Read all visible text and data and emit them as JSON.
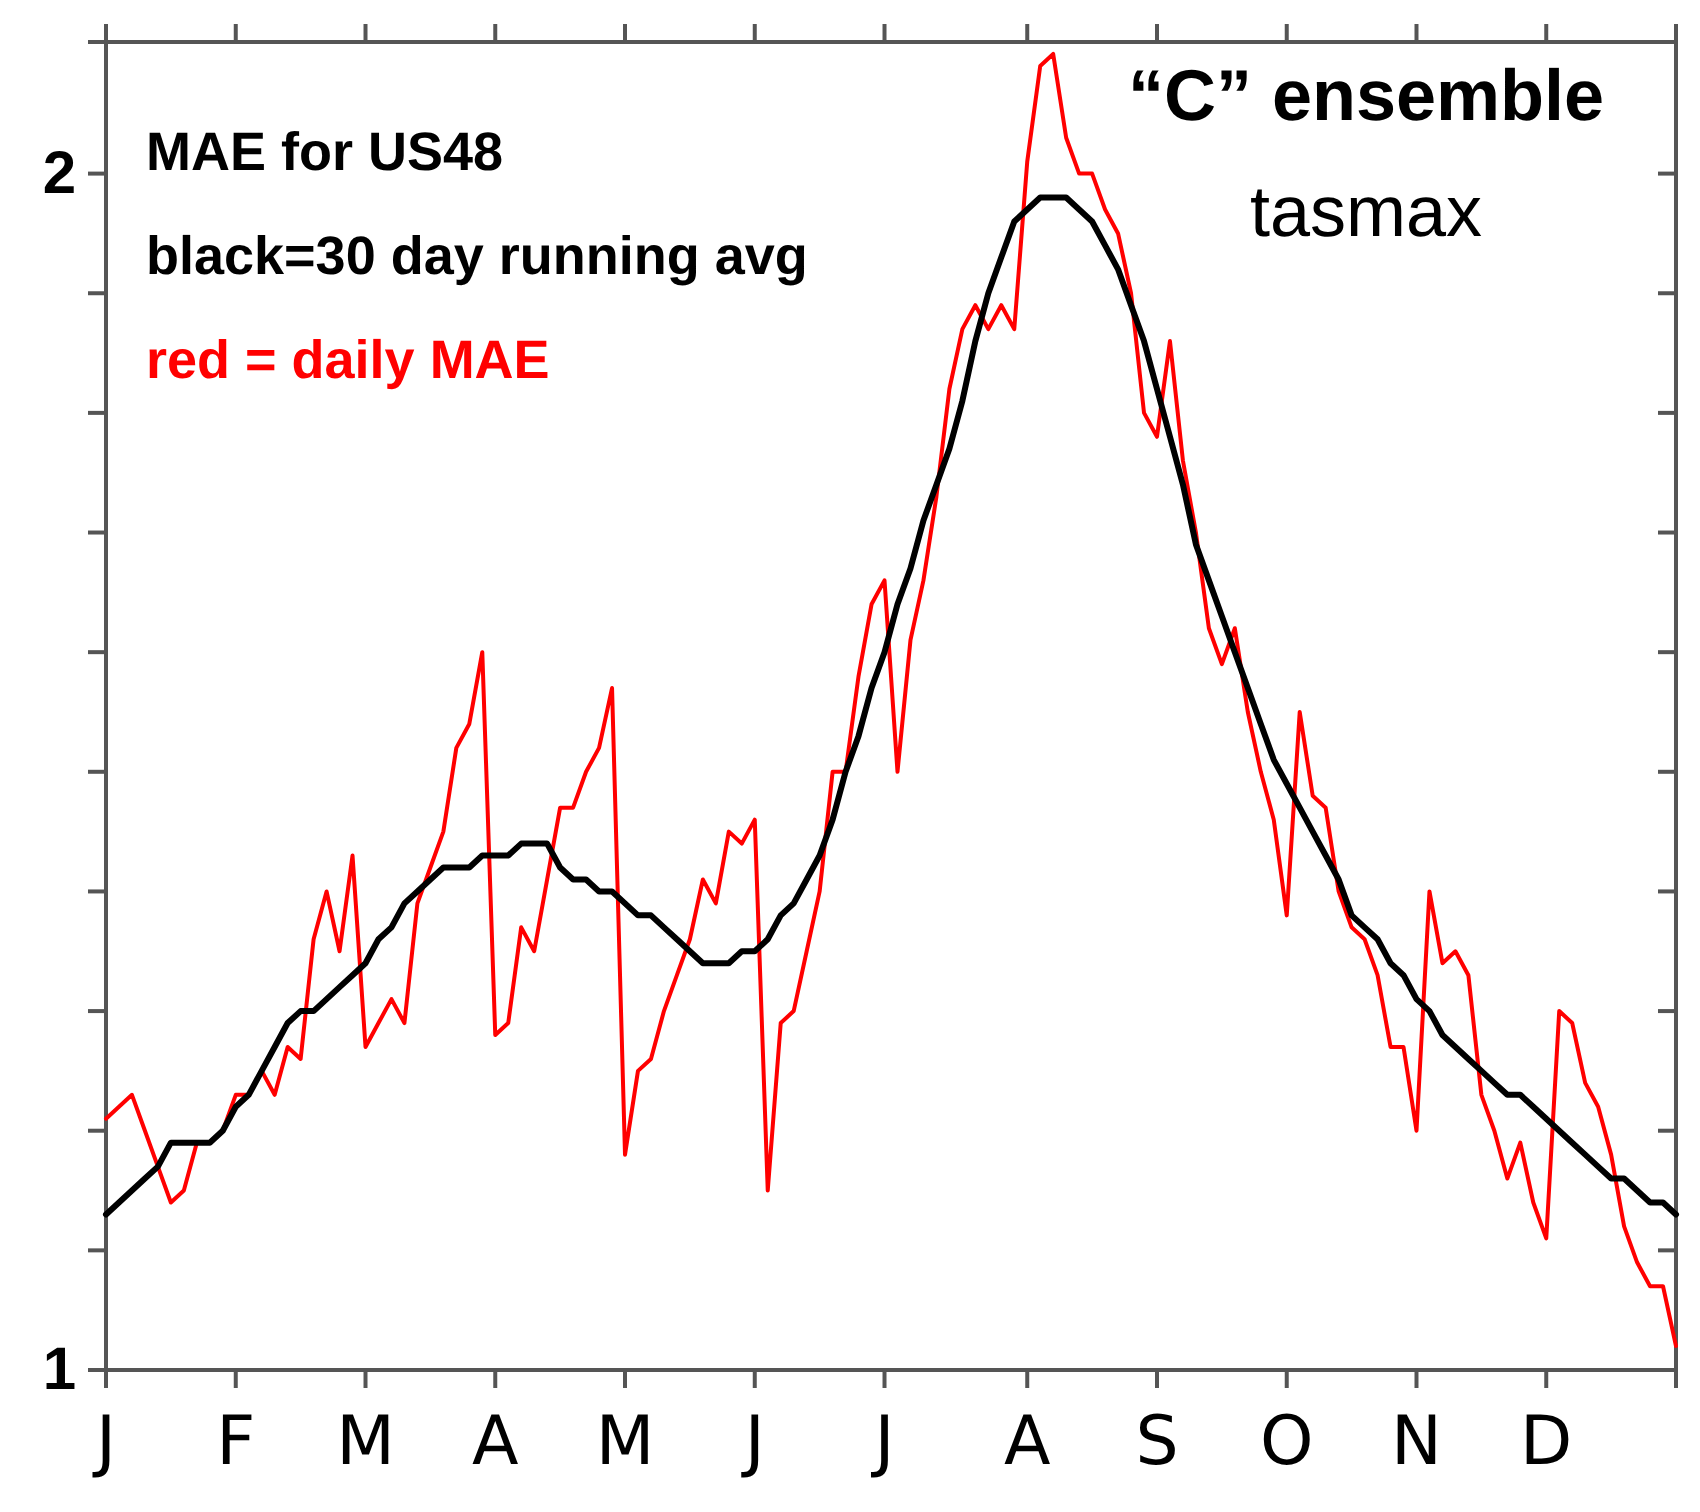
{
  "chart_data": {
    "type": "line",
    "title": "“C” ensemble",
    "subtitle": "tasmax",
    "annotations": [
      "MAE for US48"
    ],
    "legend": "top left",
    "categories": [
      "J",
      null,
      null,
      null,
      null,
      null,
      null,
      null,
      null,
      null,
      "F",
      null,
      null,
      null,
      null,
      null,
      null,
      null,
      null,
      null,
      "M",
      null,
      null,
      null,
      null,
      null,
      null,
      null,
      null,
      null,
      "A",
      null,
      null,
      null,
      null,
      null,
      null,
      null,
      null,
      null,
      "M",
      null,
      null,
      null,
      null,
      null,
      null,
      null,
      null,
      null,
      "J",
      null,
      null,
      null,
      null,
      null,
      null,
      null,
      null,
      null,
      "J",
      null,
      null,
      null,
      null,
      null,
      null,
      null,
      null,
      null,
      null,
      "A",
      null,
      null,
      null,
      null,
      null,
      null,
      null,
      null,
      null,
      "S",
      null,
      null,
      null,
      null,
      null,
      null,
      null,
      null,
      null,
      "O",
      null,
      null,
      null,
      null,
      null,
      null,
      null,
      null,
      null,
      "N",
      null,
      null,
      null,
      null,
      null,
      null,
      null,
      null,
      null,
      "D",
      null,
      null,
      null,
      null,
      null,
      null,
      null,
      null,
      null,
      null
    ],
    "ylim": [
      1,
      2.11
    ],
    "yticks": [
      1,
      {
        "value": 1.1,
        "label": null
      },
      {
        "value": 1.2,
        "label": null
      },
      {
        "value": 1.3,
        "label": null
      },
      {
        "value": 1.4,
        "label": null
      },
      {
        "value": 1.5,
        "label": null
      },
      {
        "value": 1.6,
        "label": null
      },
      {
        "value": 1.7,
        "label": null
      },
      {
        "value": 1.8,
        "label": null
      },
      {
        "value": 1.9,
        "label": null
      },
      2
    ],
    "series": [
      {
        "name": "black=30 day running avg",
        "color": "#000000",
        "values": [
          1.13,
          1.14,
          1.15,
          1.16,
          1.17,
          1.19,
          1.19,
          1.19,
          1.19,
          1.2,
          1.22,
          1.23,
          1.25,
          1.27,
          1.29,
          1.3,
          1.3,
          1.31,
          1.32,
          1.33,
          1.34,
          1.36,
          1.37,
          1.39,
          1.4,
          1.41,
          1.42,
          1.42,
          1.42,
          1.43,
          1.43,
          1.43,
          1.44,
          1.44,
          1.44,
          1.42,
          1.41,
          1.41,
          1.4,
          1.4,
          1.39,
          1.38,
          1.38,
          1.37,
          1.36,
          1.35,
          1.34,
          1.34,
          1.34,
          1.35,
          1.35,
          1.36,
          1.38,
          1.39,
          1.41,
          1.43,
          1.46,
          1.5,
          1.53,
          1.57,
          1.6,
          1.64,
          1.67,
          1.71,
          1.74,
          1.77,
          1.81,
          1.86,
          1.9,
          1.93,
          1.96,
          1.97,
          1.98,
          1.98,
          1.98,
          1.97,
          1.96,
          1.94,
          1.92,
          1.89,
          1.86,
          1.82,
          1.78,
          1.74,
          1.69,
          1.66,
          1.63,
          1.6,
          1.57,
          1.54,
          1.51,
          1.49,
          1.47,
          1.45,
          1.43,
          1.41,
          1.38,
          1.37,
          1.36,
          1.34,
          1.33,
          1.31,
          1.3,
          1.28,
          1.27,
          1.26,
          1.25,
          1.24,
          1.23,
          1.23,
          1.22,
          1.21,
          1.2,
          1.19,
          1.18,
          1.17,
          1.16,
          1.16,
          1.15,
          1.14,
          1.14,
          1.13
        ]
      },
      {
        "name": "red = daily MAE",
        "color": "#ff0000",
        "values": [
          1.21,
          1.22,
          1.23,
          1.2,
          1.17,
          1.14,
          1.15,
          1.19,
          1.19,
          1.2,
          1.23,
          1.23,
          1.25,
          1.23,
          1.27,
          1.26,
          1.36,
          1.4,
          1.35,
          1.43,
          1.27,
          1.29,
          1.31,
          1.29,
          1.39,
          1.42,
          1.45,
          1.52,
          1.54,
          1.6,
          1.28,
          1.29,
          1.37,
          1.35,
          1.41,
          1.47,
          1.47,
          1.5,
          1.52,
          1.57,
          1.18,
          1.25,
          1.26,
          1.3,
          1.33,
          1.36,
          1.41,
          1.39,
          1.45,
          1.44,
          1.46,
          1.15,
          1.29,
          1.3,
          1.35,
          1.4,
          1.5,
          1.5,
          1.58,
          1.64,
          1.66,
          1.5,
          1.61,
          1.66,
          1.73,
          1.82,
          1.87,
          1.89,
          1.87,
          1.89,
          1.87,
          2.01,
          2.09,
          2.1,
          2.03,
          2.0,
          2.0,
          1.97,
          1.95,
          1.9,
          1.8,
          1.78,
          1.86,
          1.76,
          1.7,
          1.62,
          1.59,
          1.62,
          1.55,
          1.5,
          1.46,
          1.38,
          1.55,
          1.48,
          1.47,
          1.4,
          1.37,
          1.36,
          1.33,
          1.27,
          1.27,
          1.2,
          1.4,
          1.34,
          1.35,
          1.33,
          1.23,
          1.2,
          1.16,
          1.19,
          1.14,
          1.11,
          1.3,
          1.29,
          1.24,
          1.22,
          1.18,
          1.12,
          1.09,
          1.07,
          1.07,
          1.02
        ]
      }
    ]
  }
}
